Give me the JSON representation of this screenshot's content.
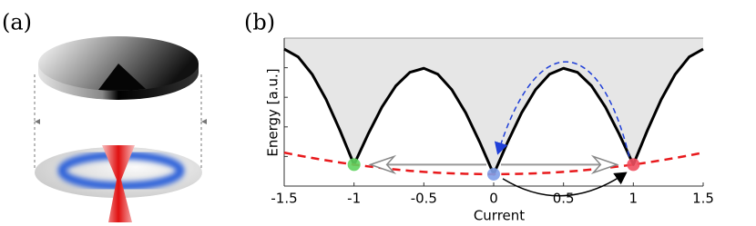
{
  "panel_a": {
    "label": "(a)"
  },
  "chart_data": {
    "type": "line",
    "panel_label": "(b)",
    "xlabel": "Current",
    "ylabel": "Energy [a.u.]",
    "x": [
      -1.5,
      -1.4,
      -1.3,
      -1.2,
      -1.1,
      -1.0,
      -0.9,
      -0.8,
      -0.7,
      -0.6,
      -0.5,
      -0.4,
      -0.3,
      -0.2,
      -0.1,
      0,
      0.1,
      0.2,
      0.3,
      0.4,
      0.5,
      0.6,
      0.7,
      0.8,
      0.9,
      1.0,
      1.1,
      1.2,
      1.3,
      1.4,
      1.5
    ],
    "xlim": [
      -1.5,
      1.5
    ],
    "ylim": [
      0,
      1
    ],
    "xticks": [
      -1.5,
      -1,
      -0.5,
      0,
      0.5,
      1,
      1.5
    ],
    "series": [
      {
        "color": "#000000",
        "style": "solid",
        "fill": "#e6e6e6",
        "values": [
          0.926,
          0.873,
          0.756,
          0.586,
          0.375,
          0.145,
          0.349,
          0.534,
          0.678,
          0.769,
          0.796,
          0.756,
          0.652,
          0.495,
          0.297,
          0.08,
          0.297,
          0.495,
          0.652,
          0.756,
          0.796,
          0.769,
          0.678,
          0.534,
          0.349,
          0.145,
          0.375,
          0.586,
          0.756,
          0.873,
          0.926
        ]
      },
      {
        "color": "#e8191c",
        "style": "dashed",
        "values": [
          0.226,
          0.207,
          0.19,
          0.174,
          0.159,
          0.145,
          0.133,
          0.122,
          0.112,
          0.103,
          0.096,
          0.09,
          0.086,
          0.083,
          0.081,
          0.08,
          0.081,
          0.083,
          0.086,
          0.09,
          0.096,
          0.103,
          0.112,
          0.122,
          0.133,
          0.145,
          0.159,
          0.174,
          0.19,
          0.207,
          0.226
        ]
      }
    ],
    "points": {
      "x": [
        -1,
        0,
        1
      ],
      "y": [
        0.145,
        0.08,
        0.145
      ],
      "colors": [
        "#5fd35f",
        "#7f9fe8",
        "#ef4f5f"
      ]
    }
  }
}
